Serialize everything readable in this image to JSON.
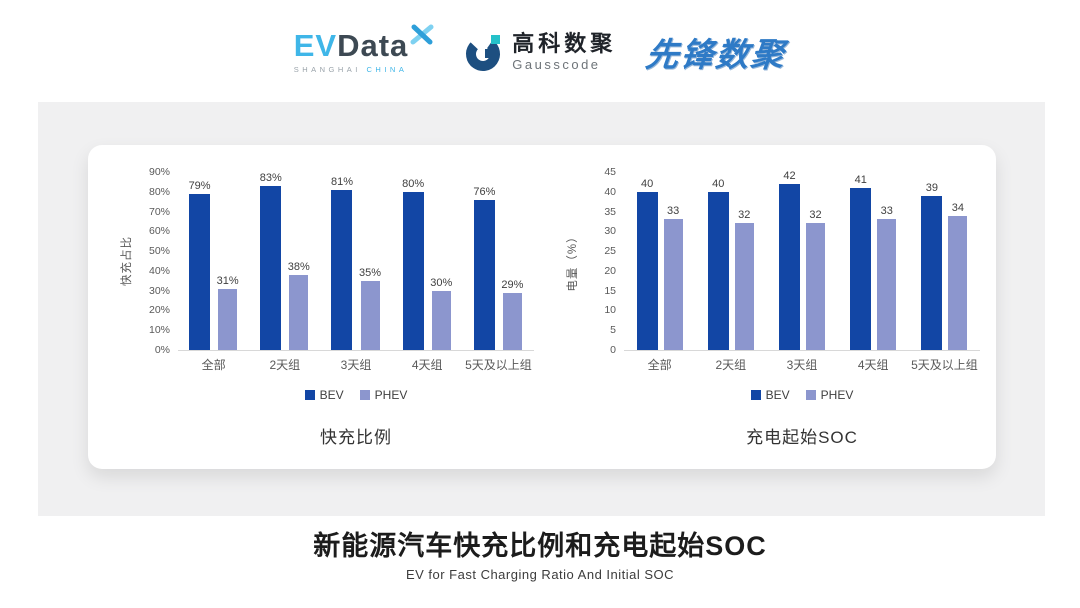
{
  "header": {
    "evdata_logo": {
      "ev": "EV",
      "data": "Data",
      "sub_left": "SHANGHAI",
      "sub_right": "CHINA"
    },
    "gausscode_logo": {
      "cn": "高科数聚",
      "en": "Gausscode"
    },
    "pioneer_logo": {
      "text": "先锋数聚"
    }
  },
  "chart_data": [
    {
      "type": "bar",
      "title": "快充比例",
      "categories": [
        "全部",
        "2天组",
        "3天组",
        "4天组",
        "5天及以上组"
      ],
      "series": [
        {
          "name": "BEV",
          "values": [
            79,
            83,
            81,
            80,
            76
          ]
        },
        {
          "name": "PHEV",
          "values": [
            31,
            38,
            35,
            30,
            29
          ]
        }
      ],
      "ylabel": "快充占比",
      "xlabel": "",
      "ylim": [
        0,
        90
      ],
      "ytick_step": 10,
      "ytick_suffix": "%",
      "value_suffix": "%",
      "grid": false,
      "legend_position": "bottom"
    },
    {
      "type": "bar",
      "title": "充电起始SOC",
      "categories": [
        "全部",
        "2天组",
        "3天组",
        "4天组",
        "5天及以上组"
      ],
      "series": [
        {
          "name": "BEV",
          "values": [
            40,
            40,
            42,
            41,
            39
          ]
        },
        {
          "name": "PHEV",
          "values": [
            33,
            32,
            32,
            33,
            34
          ]
        }
      ],
      "ylabel": "电量（%）",
      "xlabel": "",
      "ylim": [
        0,
        45
      ],
      "ytick_step": 5,
      "ytick_suffix": "",
      "value_suffix": "",
      "grid": false,
      "legend_position": "bottom"
    }
  ],
  "footer": {
    "title": "新能源汽车快充比例和充电起始SOC",
    "subtitle": "EV for Fast Charging Ratio And Initial SOC"
  },
  "colors": {
    "bev": "#1246A5",
    "phev": "#8C96CE",
    "panel": "#F0F0F1",
    "accent_blue": "#3FB6E8",
    "dark": "#3D4953",
    "gauss_navy": "#1D4F80",
    "gauss_teal": "#25C1C9",
    "pioneer_blue": "#2E7AC6"
  }
}
